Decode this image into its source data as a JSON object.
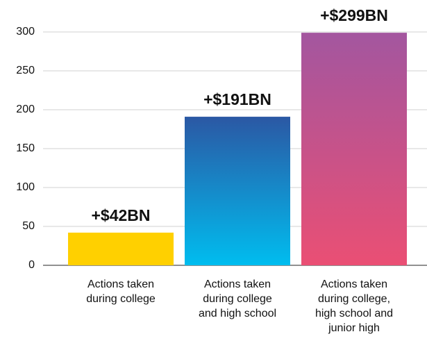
{
  "chart_data": {
    "type": "bar",
    "categories": [
      "Actions taken\nduring college",
      "Actions taken\nduring college\nand high school",
      "Actions taken\nduring college,\nhigh school and\njunior high"
    ],
    "values": [
      42,
      191,
      299
    ],
    "value_labels": [
      "+$42BN",
      "+$191BN",
      "+$299BN"
    ],
    "gradients": [
      [
        "#ffd000",
        "#ffd000"
      ],
      [
        "#2b58a4",
        "#00bdef"
      ],
      [
        "#a3569f",
        "#ea4f74"
      ]
    ],
    "ylim": [
      0,
      300
    ],
    "yticks": [
      0,
      50,
      100,
      150,
      200,
      250,
      300
    ],
    "grid": true
  }
}
